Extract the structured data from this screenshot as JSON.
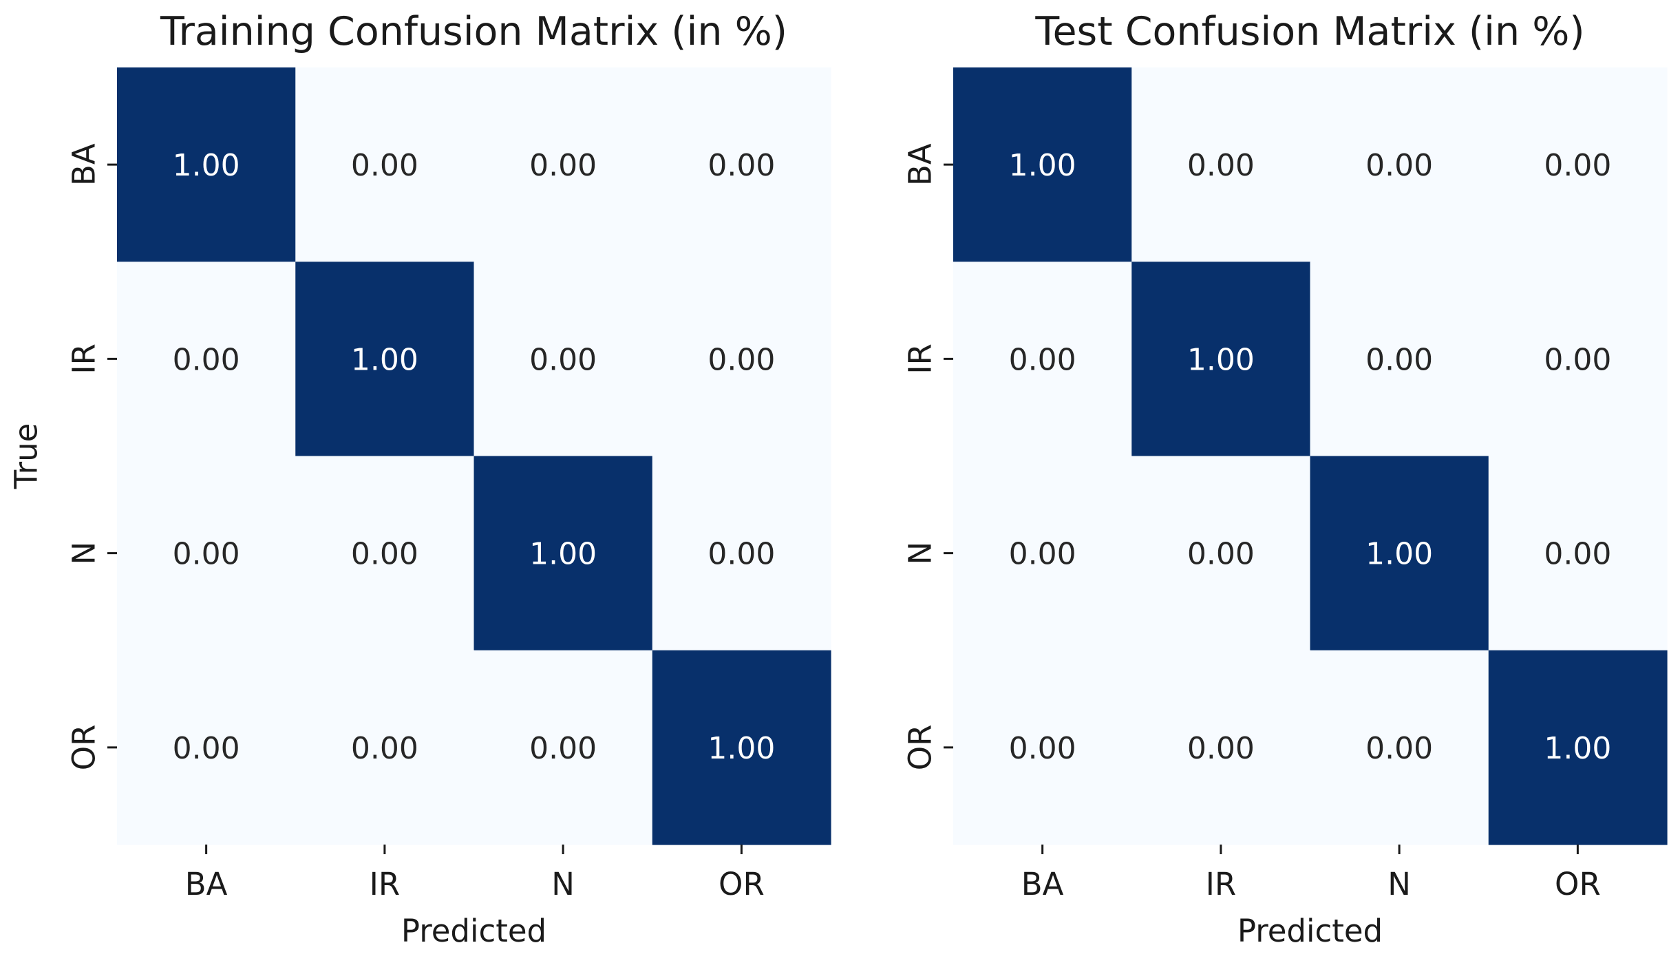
{
  "chart_data": [
    {
      "type": "heatmap",
      "title": "Training Confusion Matrix (in %)",
      "xlabel": "Predicted",
      "ylabel": "True",
      "x_categories": [
        "BA",
        "IR",
        "N",
        "OR"
      ],
      "y_categories": [
        "BA",
        "IR",
        "N",
        "OR"
      ],
      "values": [
        [
          1.0,
          0.0,
          0.0,
          0.0
        ],
        [
          0.0,
          1.0,
          0.0,
          0.0
        ],
        [
          0.0,
          0.0,
          1.0,
          0.0
        ],
        [
          0.0,
          0.0,
          0.0,
          1.0
        ]
      ],
      "value_format": "2 decimals",
      "colorscale": "Blues",
      "vrange": [
        0,
        1
      ],
      "colorbar": false,
      "grid": false
    },
    {
      "type": "heatmap",
      "title": "Test Confusion Matrix (in %)",
      "xlabel": "Predicted",
      "ylabel": "",
      "x_categories": [
        "BA",
        "IR",
        "N",
        "OR"
      ],
      "y_categories": [
        "BA",
        "IR",
        "N",
        "OR"
      ],
      "values": [
        [
          1.0,
          0.0,
          0.0,
          0.0
        ],
        [
          0.0,
          1.0,
          0.0,
          0.0
        ],
        [
          0.0,
          0.0,
          1.0,
          0.0
        ],
        [
          0.0,
          0.0,
          0.0,
          1.0
        ]
      ],
      "value_format": "2 decimals",
      "colorscale": "Blues",
      "vrange": [
        0,
        1
      ],
      "colorbar": false,
      "grid": false
    }
  ],
  "colors": {
    "high": "#08306b",
    "low": "#f7fbff",
    "text_on_dark": "#ffffff",
    "text_on_light": "#262626"
  }
}
